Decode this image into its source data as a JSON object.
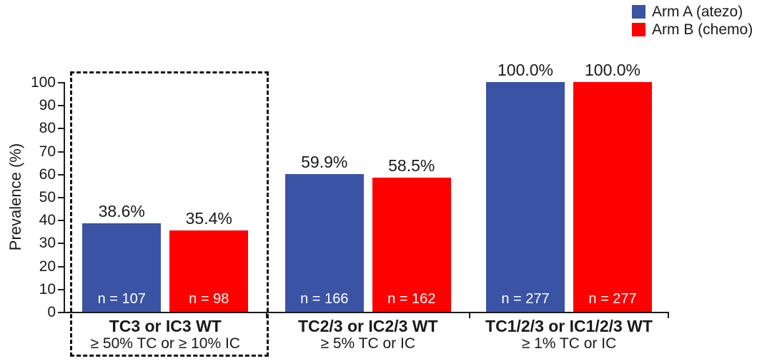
{
  "legend": {
    "items": [
      {
        "label": "Arm A (atezo)",
        "color": "#3B53A5"
      },
      {
        "label": "Arm B (chemo)",
        "color": "#FE0000"
      }
    ]
  },
  "chart_data": {
    "type": "bar",
    "title": "",
    "xlabel": "",
    "ylabel": "Prevalence (%)",
    "ylim": [
      0,
      100
    ],
    "yticks": [
      0,
      10,
      20,
      30,
      40,
      50,
      60,
      70,
      80,
      90,
      100
    ],
    "grid": false,
    "legend_position": "top-right",
    "categories": [
      {
        "title": "TC3 or IC3 WT",
        "subtitle": "≥ 50% TC or ≥ 10% IC",
        "highlighted": true
      },
      {
        "title": "TC2/3 or IC2/3 WT",
        "subtitle": "≥ 5% TC or IC",
        "highlighted": false
      },
      {
        "title": "TC1/2/3 or IC1/2/3 WT",
        "subtitle": "≥ 1% TC or IC",
        "highlighted": false
      }
    ],
    "series": [
      {
        "name": "Arm A (atezo)",
        "color": "#3B53A5",
        "values": [
          38.6,
          59.9,
          100.0
        ],
        "value_labels": [
          "38.6%",
          "59.9%",
          "100.0%"
        ],
        "n_labels": [
          "n = 107",
          "n = 166",
          "n = 277"
        ]
      },
      {
        "name": "Arm B (chemo)",
        "color": "#FE0000",
        "values": [
          35.4,
          58.5,
          100.0
        ],
        "value_labels": [
          "35.4%",
          "58.5%",
          "100.0%"
        ],
        "n_labels": [
          "n = 98",
          "n = 162",
          "n = 277"
        ]
      }
    ],
    "highlight_box": {
      "style": "dashed",
      "category_index": 0
    }
  }
}
